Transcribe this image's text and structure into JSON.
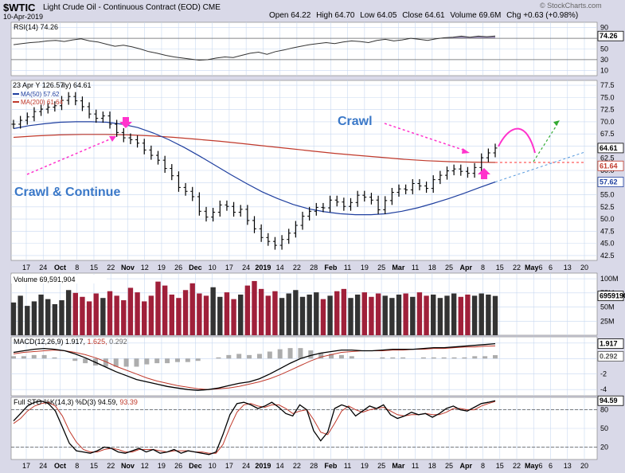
{
  "header": {
    "symbol": "$WTIC",
    "name": "Light Crude Oil - Continuous Contract (EOD)",
    "exchange": "CME",
    "date": "10-Apr-2019",
    "watermark": "© StockCharts.com",
    "quote": {
      "open_label": "Open",
      "open": "64.22",
      "high_label": "High",
      "high": "64.70",
      "low_label": "Low",
      "low": "64.05",
      "close_label": "Close",
      "close": "64.61",
      "volume_label": "Volume",
      "volume": "69.6M",
      "chg_label": "Chg",
      "chg": "+0.63 (+0.98%)"
    }
  },
  "colors": {
    "panel_bg": "#ffffff",
    "frame_bg": "#d9d9e8",
    "grid": "#c8d8f0",
    "ma50": "#1f3f9f",
    "ma200": "#c0392b",
    "volume_up": "#333333",
    "volume_down": "#a0203a",
    "annotation": "#ff33cc",
    "annotation_text": "#3a78c8",
    "projection_green": "#33aa33",
    "projection_blue": "#5599dd",
    "projection_red": "#ff3333"
  },
  "x_axis": {
    "labels": [
      "17",
      "24",
      "Oct",
      "8",
      "15",
      "22",
      "Nov",
      "12",
      "19",
      "26",
      "Dec",
      "10",
      "17",
      "24",
      "2019",
      "14",
      "22",
      "28",
      "Feb",
      "11",
      "19",
      "25",
      "Mar",
      "11",
      "18",
      "25",
      "Apr",
      "8",
      "15",
      "22",
      "May",
      "6",
      "13",
      "20"
    ],
    "bold": [
      "Oct",
      "Nov",
      "Dec",
      "2019",
      "Feb",
      "Mar",
      "Apr",
      "May"
    ],
    "label_suffix": {
      "May": "6"
    }
  },
  "chart_data": [
    {
      "id": "rsi",
      "type": "line",
      "title": "RSI(14) 74.26",
      "y_ticks": [
        90,
        70,
        50,
        30,
        10
      ],
      "ylim": [
        0,
        100
      ],
      "last_value_label": "74.26",
      "overbought": 70,
      "oversold": 30,
      "values": [
        58,
        60,
        62,
        63,
        65,
        66,
        64,
        67,
        69,
        65,
        63,
        59,
        55,
        57,
        54,
        50,
        45,
        42,
        38,
        35,
        33,
        31,
        29,
        30,
        33,
        35,
        34,
        38,
        42,
        44,
        40,
        45,
        48,
        52,
        55,
        58,
        60,
        62,
        60,
        63,
        65,
        64,
        62,
        66,
        68,
        65,
        67,
        70,
        68,
        66,
        69,
        71,
        72,
        74,
        72,
        74,
        73,
        74.26
      ]
    },
    {
      "id": "price",
      "type": "ohlc",
      "title_date": "23 Apr Y 126.57",
      "title_suffix": "ily) 64.61",
      "legend": [
        {
          "label": "MA(50) 57.62",
          "color": "#1f3f9f"
        },
        {
          "label": "MA(200) 61.64",
          "color": "#c0392b"
        }
      ],
      "y_ticks": [
        77.5,
        75.0,
        72.5,
        70.0,
        67.5,
        65.0,
        62.5,
        60.0,
        57.5,
        55.0,
        52.5,
        50.0,
        47.5,
        45.0,
        42.5
      ],
      "ylim": [
        41.5,
        78.5
      ],
      "last_price_label": "64.61",
      "ma200_label": "61.64",
      "ma50_label": "57.62",
      "closes": [
        69.5,
        70.3,
        71.0,
        72.1,
        72.6,
        73.0,
        73.3,
        74.4,
        75.2,
        74.3,
        73.1,
        71.6,
        70.7,
        71.2,
        69.5,
        67.8,
        66.7,
        66.3,
        65.6,
        64.2,
        63.1,
        62.1,
        60.4,
        58.9,
        56.5,
        55.7,
        54.6,
        51.6,
        50.4,
        51.4,
        52.9,
        52.6,
        51.4,
        52.0,
        49.7,
        48.0,
        46.2,
        45.4,
        44.6,
        45.8,
        47.1,
        48.7,
        50.6,
        51.6,
        52.4,
        52.3,
        53.9,
        53.5,
        52.6,
        53.4,
        54.9,
        54.5,
        53.9,
        51.9,
        53.8,
        55.5,
        56.2,
        56.0,
        57.3,
        56.8,
        56.3,
        58.1,
        59.0,
        59.9,
        60.3,
        59.8,
        59.4,
        60.6,
        62.6,
        63.6,
        64.6
      ],
      "ma50": [
        68.6,
        69.2,
        69.6,
        69.9,
        70.0,
        70.0,
        69.9,
        69.5,
        68.8,
        67.7,
        66.3,
        64.7,
        62.9,
        61.0,
        59.1,
        57.3,
        55.6,
        54.2,
        53.0,
        52.1,
        51.5,
        51.1,
        50.9,
        50.9,
        51.1,
        51.6,
        52.3,
        53.2,
        54.2,
        55.3,
        56.5,
        57.62
      ],
      "ma200": [
        66.8,
        67.1,
        67.3,
        67.4,
        67.4,
        67.3,
        67.1,
        66.8,
        66.4,
        66.0,
        65.5,
        65.0,
        64.5,
        64.0,
        63.5,
        63.1,
        62.7,
        62.3,
        62.0,
        61.8,
        61.7,
        61.64
      ],
      "annotations": [
        {
          "text": "Crawl & Continue"
        },
        {
          "text": "Crawl"
        }
      ]
    },
    {
      "id": "volume",
      "type": "bar",
      "title": "Volume 69,591,904",
      "y_ticks": [
        "100M",
        "75M",
        "50M",
        "25M"
      ],
      "ylim": [
        0,
        110
      ],
      "last_value_label": "69591904",
      "values": [
        58,
        70,
        52,
        60,
        72,
        64,
        55,
        62,
        80,
        75,
        68,
        60,
        74,
        66,
        78,
        70,
        62,
        84,
        76,
        60,
        70,
        95,
        88,
        72,
        66,
        80,
        92,
        74,
        70,
        85,
        68,
        76,
        64,
        72,
        88,
        96,
        82,
        70,
        78,
        66,
        74,
        80,
        68,
        72,
        76,
        64,
        70,
        78,
        82,
        66,
        72,
        76,
        68,
        74,
        70,
        66,
        72,
        74,
        68,
        76,
        70,
        72,
        66,
        70,
        74,
        68,
        72,
        70,
        74,
        72,
        69.6
      ]
    },
    {
      "id": "macd",
      "type": "line",
      "title_prefix": "MACD(12,26,9)",
      "macd_value": "1.917",
      "signal_value": "1.625",
      "hist_value": "0.292",
      "y_ticks": [
        2,
        0,
        -2,
        -4
      ],
      "ylim": [
        -4.8,
        2.8
      ],
      "last_macd_label": "1.917",
      "last_hist_label": "0.292",
      "macd": [
        0.8,
        1.0,
        1.2,
        1.3,
        1.2,
        1.0,
        0.6,
        0.1,
        -0.5,
        -1.1,
        -1.7,
        -2.2,
        -2.7,
        -3.0,
        -3.3,
        -3.6,
        -3.8,
        -4.0,
        -4.1,
        -4.0,
        -3.8,
        -3.5,
        -3.2,
        -3.0,
        -2.6,
        -2.0,
        -1.3,
        -0.6,
        0.0,
        0.4,
        0.7,
        0.9,
        1.1,
        1.1,
        1.0,
        1.0,
        1.1,
        1.2,
        1.2,
        1.2,
        1.3,
        1.4,
        1.4,
        1.5,
        1.6,
        1.7,
        1.8,
        1.917
      ],
      "signal": [
        0.6,
        0.8,
        0.9,
        1.0,
        1.1,
        1.0,
        0.8,
        0.5,
        0.1,
        -0.4,
        -1.0,
        -1.5,
        -2.0,
        -2.5,
        -2.9,
        -3.2,
        -3.5,
        -3.7,
        -3.9,
        -4.0,
        -3.9,
        -3.8,
        -3.6,
        -3.3,
        -3.0,
        -2.6,
        -2.1,
        -1.5,
        -0.9,
        -0.3,
        0.2,
        0.5,
        0.8,
        0.9,
        1.0,
        1.0,
        1.0,
        1.1,
        1.1,
        1.2,
        1.2,
        1.3,
        1.3,
        1.4,
        1.5,
        1.5,
        1.6,
        1.625
      ]
    },
    {
      "id": "sto",
      "type": "line",
      "title_prefix": "Full STO %K(14,3) %D(3)",
      "k_value": "94.59",
      "d_value": "93.39",
      "y_ticks": [
        80,
        50,
        20
      ],
      "ylim": [
        0,
        100
      ],
      "last_value_label": "94.59",
      "k": [
        62,
        74,
        86,
        92,
        94,
        90,
        78,
        52,
        26,
        14,
        12,
        10,
        14,
        20,
        18,
        12,
        10,
        14,
        18,
        12,
        16,
        10,
        12,
        16,
        10,
        14,
        12,
        10,
        8,
        12,
        40,
        72,
        90,
        92,
        88,
        82,
        86,
        92,
        84,
        74,
        70,
        88,
        80,
        46,
        30,
        44,
        82,
        88,
        84,
        70,
        78,
        86,
        82,
        88,
        72,
        66,
        70,
        76,
        72,
        74,
        68,
        74,
        82,
        86,
        80,
        78,
        84,
        90,
        92,
        94.59
      ],
      "d": [
        58,
        66,
        78,
        86,
        90,
        92,
        86,
        70,
        46,
        28,
        16,
        12,
        12,
        16,
        18,
        16,
        12,
        12,
        16,
        16,
        16,
        14,
        12,
        14,
        14,
        14,
        12,
        12,
        10,
        10,
        24,
        52,
        76,
        88,
        90,
        86,
        84,
        88,
        88,
        82,
        74,
        78,
        80,
        64,
        44,
        40,
        58,
        78,
        86,
        80,
        76,
        80,
        82,
        84,
        78,
        72,
        70,
        72,
        72,
        74,
        72,
        72,
        76,
        82,
        82,
        80,
        80,
        86,
        90,
        93.39
      ]
    }
  ]
}
